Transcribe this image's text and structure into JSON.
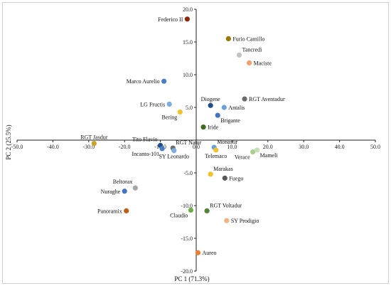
{
  "chart_data": {
    "type": "scatter",
    "title": "",
    "xlabel": "PC 1 (71.3%)",
    "ylabel": "PC 2 (25.5%)",
    "xlim": [
      -50,
      50
    ],
    "ylim": [
      -20,
      20
    ],
    "x_ticks": [
      "-50.0",
      "-40.0",
      "-30.0",
      "-20.0",
      "-10.0",
      "0.0",
      "10.0",
      "20.0",
      "30.0",
      "40.0",
      "50.0"
    ],
    "y_ticks": [
      "-20.0",
      "-15.0",
      "-10.0",
      "-5.0",
      "0.0",
      "5.0",
      "10.0",
      "15.0",
      "20.0"
    ],
    "grid": false,
    "legend": "none",
    "points": [
      {
        "label": "Federico II",
        "x": -2.5,
        "y": 18.5,
        "color": "#8b2a0e",
        "label_pos": "left"
      },
      {
        "label": "Furio Camillo",
        "x": 9.0,
        "y": 15.5,
        "color": "#9a7a06",
        "label_pos": "right"
      },
      {
        "label": "Tancredi",
        "x": 12.0,
        "y": 13.0,
        "color": "#c3c3c3",
        "label_pos": "above-right"
      },
      {
        "label": "Maciste",
        "x": 14.8,
        "y": 11.8,
        "color": "#f4a06a",
        "label_pos": "right"
      },
      {
        "label": "Marco Aurelio",
        "x": -9.0,
        "y": 9.0,
        "color": "#4a7fc7",
        "label_pos": "left"
      },
      {
        "label": "LG Fructis",
        "x": -7.5,
        "y": 5.5,
        "color": "#7aaee3",
        "label_pos": "left"
      },
      {
        "label": "Bering",
        "x": -4.5,
        "y": 4.3,
        "color": "#f2c12e",
        "label_pos": "below-left"
      },
      {
        "label": "Diogene",
        "x": 4.0,
        "y": 5.3,
        "color": "#1f4e86",
        "label_pos": "above"
      },
      {
        "label": "Antalis",
        "x": 7.8,
        "y": 5.0,
        "color": "#6aa2d8",
        "label_pos": "right"
      },
      {
        "label": "RGT Aventadur",
        "x": 13.5,
        "y": 6.3,
        "color": "#6b6b6b",
        "label_pos": "right"
      },
      {
        "label": "Brigante",
        "x": 6.0,
        "y": 3.8,
        "color": "#4472c4",
        "label_pos": "below-right"
      },
      {
        "label": "Iride",
        "x": 2.0,
        "y": 2.0,
        "color": "#3a6b1e",
        "label_pos": "right"
      },
      {
        "label": "RGT Jasdur",
        "x": -28.5,
        "y": -0.5,
        "color": "#c9a227",
        "label_pos": "above"
      },
      {
        "label": "Tito Flavio",
        "x": -10.0,
        "y": -0.8,
        "color": "#1f4e86",
        "label_pos": "above-left"
      },
      {
        "label": "RGT Natur",
        "x": -6.5,
        "y": -1.2,
        "color": "#6b6b6b",
        "label_pos": "above-right"
      },
      {
        "label": "Incanto-101",
        "x": -9.5,
        "y": -1.3,
        "color": "#4a7fc7",
        "label_pos": "below-left"
      },
      {
        "label": "SY Leonardo",
        "x": -6.2,
        "y": -1.6,
        "color": "#7aaee3",
        "label_pos": "below"
      },
      {
        "label": "Monastir",
        "x": 5.0,
        "y": -1.1,
        "color": "#6aa2d8",
        "label_pos": "above-right"
      },
      {
        "label": "Telemaco",
        "x": 5.5,
        "y": -1.5,
        "color": "#f2c12e",
        "label_pos": "below"
      },
      {
        "label": "Verace",
        "x": 15.8,
        "y": -1.8,
        "color": "#a9d18e",
        "label_pos": "below-left"
      },
      {
        "label": "Mameli",
        "x": 17.0,
        "y": -1.5,
        "color": "#c5e0b4",
        "label_pos": "below-right"
      },
      {
        "label": "Marakas",
        "x": 4.0,
        "y": -5.2,
        "color": "#f2c12e",
        "label_pos": "above-right"
      },
      {
        "label": "Fuego",
        "x": 8.0,
        "y": -5.8,
        "color": "#595959",
        "label_pos": "right"
      },
      {
        "label": "Beltorax",
        "x": -17.0,
        "y": -7.3,
        "color": "#a6a6a6",
        "label_pos": "above-left"
      },
      {
        "label": "Nuraghe",
        "x": -20.0,
        "y": -7.8,
        "color": "#4472c4",
        "label_pos": "left"
      },
      {
        "label": "Panoramix",
        "x": -19.5,
        "y": -10.8,
        "color": "#c55a11",
        "label_pos": "left"
      },
      {
        "label": "Claudio",
        "x": -1.5,
        "y": -10.7,
        "color": "#70ad47",
        "label_pos": "below-left"
      },
      {
        "label": "RGT Voltadur",
        "x": 3.0,
        "y": -10.8,
        "color": "#548235",
        "label_pos": "above-right"
      },
      {
        "label": "SY Prodigio",
        "x": 8.5,
        "y": -12.3,
        "color": "#f4b183",
        "label_pos": "right"
      },
      {
        "label": "Aureo",
        "x": 0.5,
        "y": -17.2,
        "color": "#ed7d31",
        "label_pos": "right"
      }
    ]
  }
}
